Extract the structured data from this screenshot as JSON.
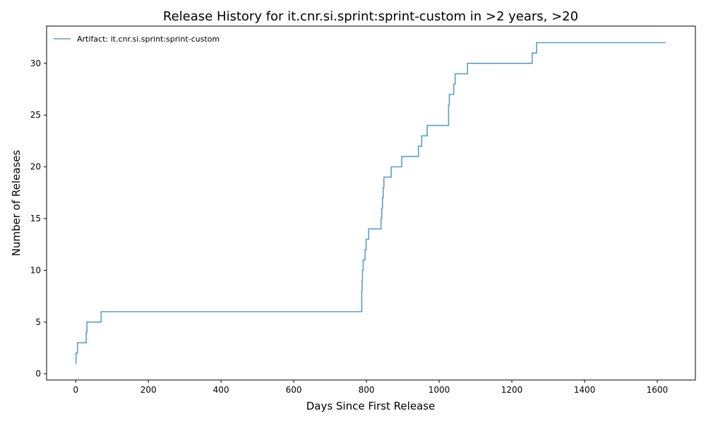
{
  "chart_data": {
    "type": "line",
    "title": "Release History for it.cnr.si.sprint:sprint-custom in >2 years, >20",
    "xlabel": "Days Since First Release",
    "ylabel": "Number of Releases",
    "xlim": [
      -80,
      1705
    ],
    "ylim": [
      -0.6,
      33.6
    ],
    "xticks": [
      0,
      200,
      400,
      600,
      800,
      1000,
      1200,
      1400,
      1600
    ],
    "yticks": [
      0,
      5,
      10,
      15,
      20,
      25,
      30
    ],
    "legend_position": "upper-left",
    "grid": false,
    "series": [
      {
        "name": "Artifact: it.cnr.si.sprint:sprint-custom",
        "color": "#5a9ec9",
        "step": "post",
        "x": [
          0,
          1,
          5,
          29,
          31,
          70,
          787,
          788,
          789,
          791,
          796,
          799,
          801,
          806,
          840,
          842,
          844,
          846,
          848,
          850,
          868,
          897,
          943,
          952,
          967,
          1026,
          1028,
          1031,
          1040,
          1044,
          1078,
          1256,
          1268,
          1623
        ],
        "y": [
          1,
          2,
          3,
          4,
          5,
          6,
          8,
          9,
          10,
          11,
          12,
          13,
          13,
          14,
          15,
          16,
          17,
          18,
          19,
          19,
          20,
          21,
          22,
          23,
          24,
          26,
          27,
          27,
          28,
          29,
          30,
          31,
          32,
          32
        ]
      }
    ]
  }
}
